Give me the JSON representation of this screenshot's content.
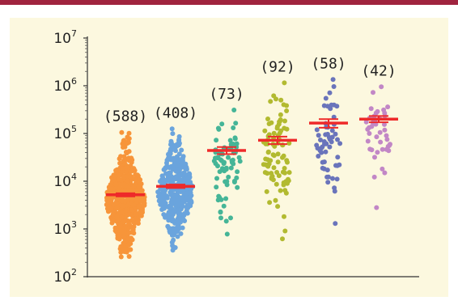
{
  "chart_data": {
    "type": "scatter",
    "subtype": "beeswarm",
    "y_scale": "log",
    "ylim": [
      100,
      10000000
    ],
    "y_ticks": [
      {
        "value": 100,
        "base": "10",
        "exp": "2"
      },
      {
        "value": 1000,
        "base": "10",
        "exp": "3"
      },
      {
        "value": 10000,
        "base": "10",
        "exp": "4"
      },
      {
        "value": 100000,
        "base": "10",
        "exp": "5"
      },
      {
        "value": 1000000,
        "base": "10",
        "exp": "6"
      },
      {
        "value": 10000000,
        "base": "10",
        "exp": "7"
      }
    ],
    "title": "",
    "xlabel": "",
    "ylabel": "",
    "grid": false,
    "series": [
      {
        "count_label": "(588)",
        "n": 588,
        "color": "#f7953a",
        "mean": 5200,
        "sem_low": 4800,
        "sem_high": 5600,
        "min": 260,
        "max": 105000
      },
      {
        "count_label": "(408)",
        "n": 408,
        "color": "#6aa4dd",
        "mean": 7800,
        "sem_low": 7200,
        "sem_high": 8500,
        "min": 360,
        "max": 125000
      },
      {
        "count_label": "(73)",
        "n": 73,
        "color": "#45b597",
        "mean": 44000,
        "sem_low": 37000,
        "sem_high": 52000,
        "min": 780,
        "max": 310000
      },
      {
        "count_label": "(92)",
        "n": 92,
        "color": "#b2ba30",
        "mean": 72000,
        "sem_low": 60000,
        "sem_high": 86000,
        "min": 620,
        "max": 1150000
      },
      {
        "count_label": "(58)",
        "n": 58,
        "color": "#6a74bb",
        "mean": 165000,
        "sem_low": 132000,
        "sem_high": 200000,
        "min": 1300,
        "max": 1350000
      },
      {
        "count_label": "(42)",
        "n": 42,
        "color": "#c287c6",
        "mean": 200000,
        "sem_low": 172000,
        "sem_high": 232000,
        "min": 2800,
        "max": 950000
      }
    ],
    "mean_bar_color": "#ee2a2a"
  }
}
